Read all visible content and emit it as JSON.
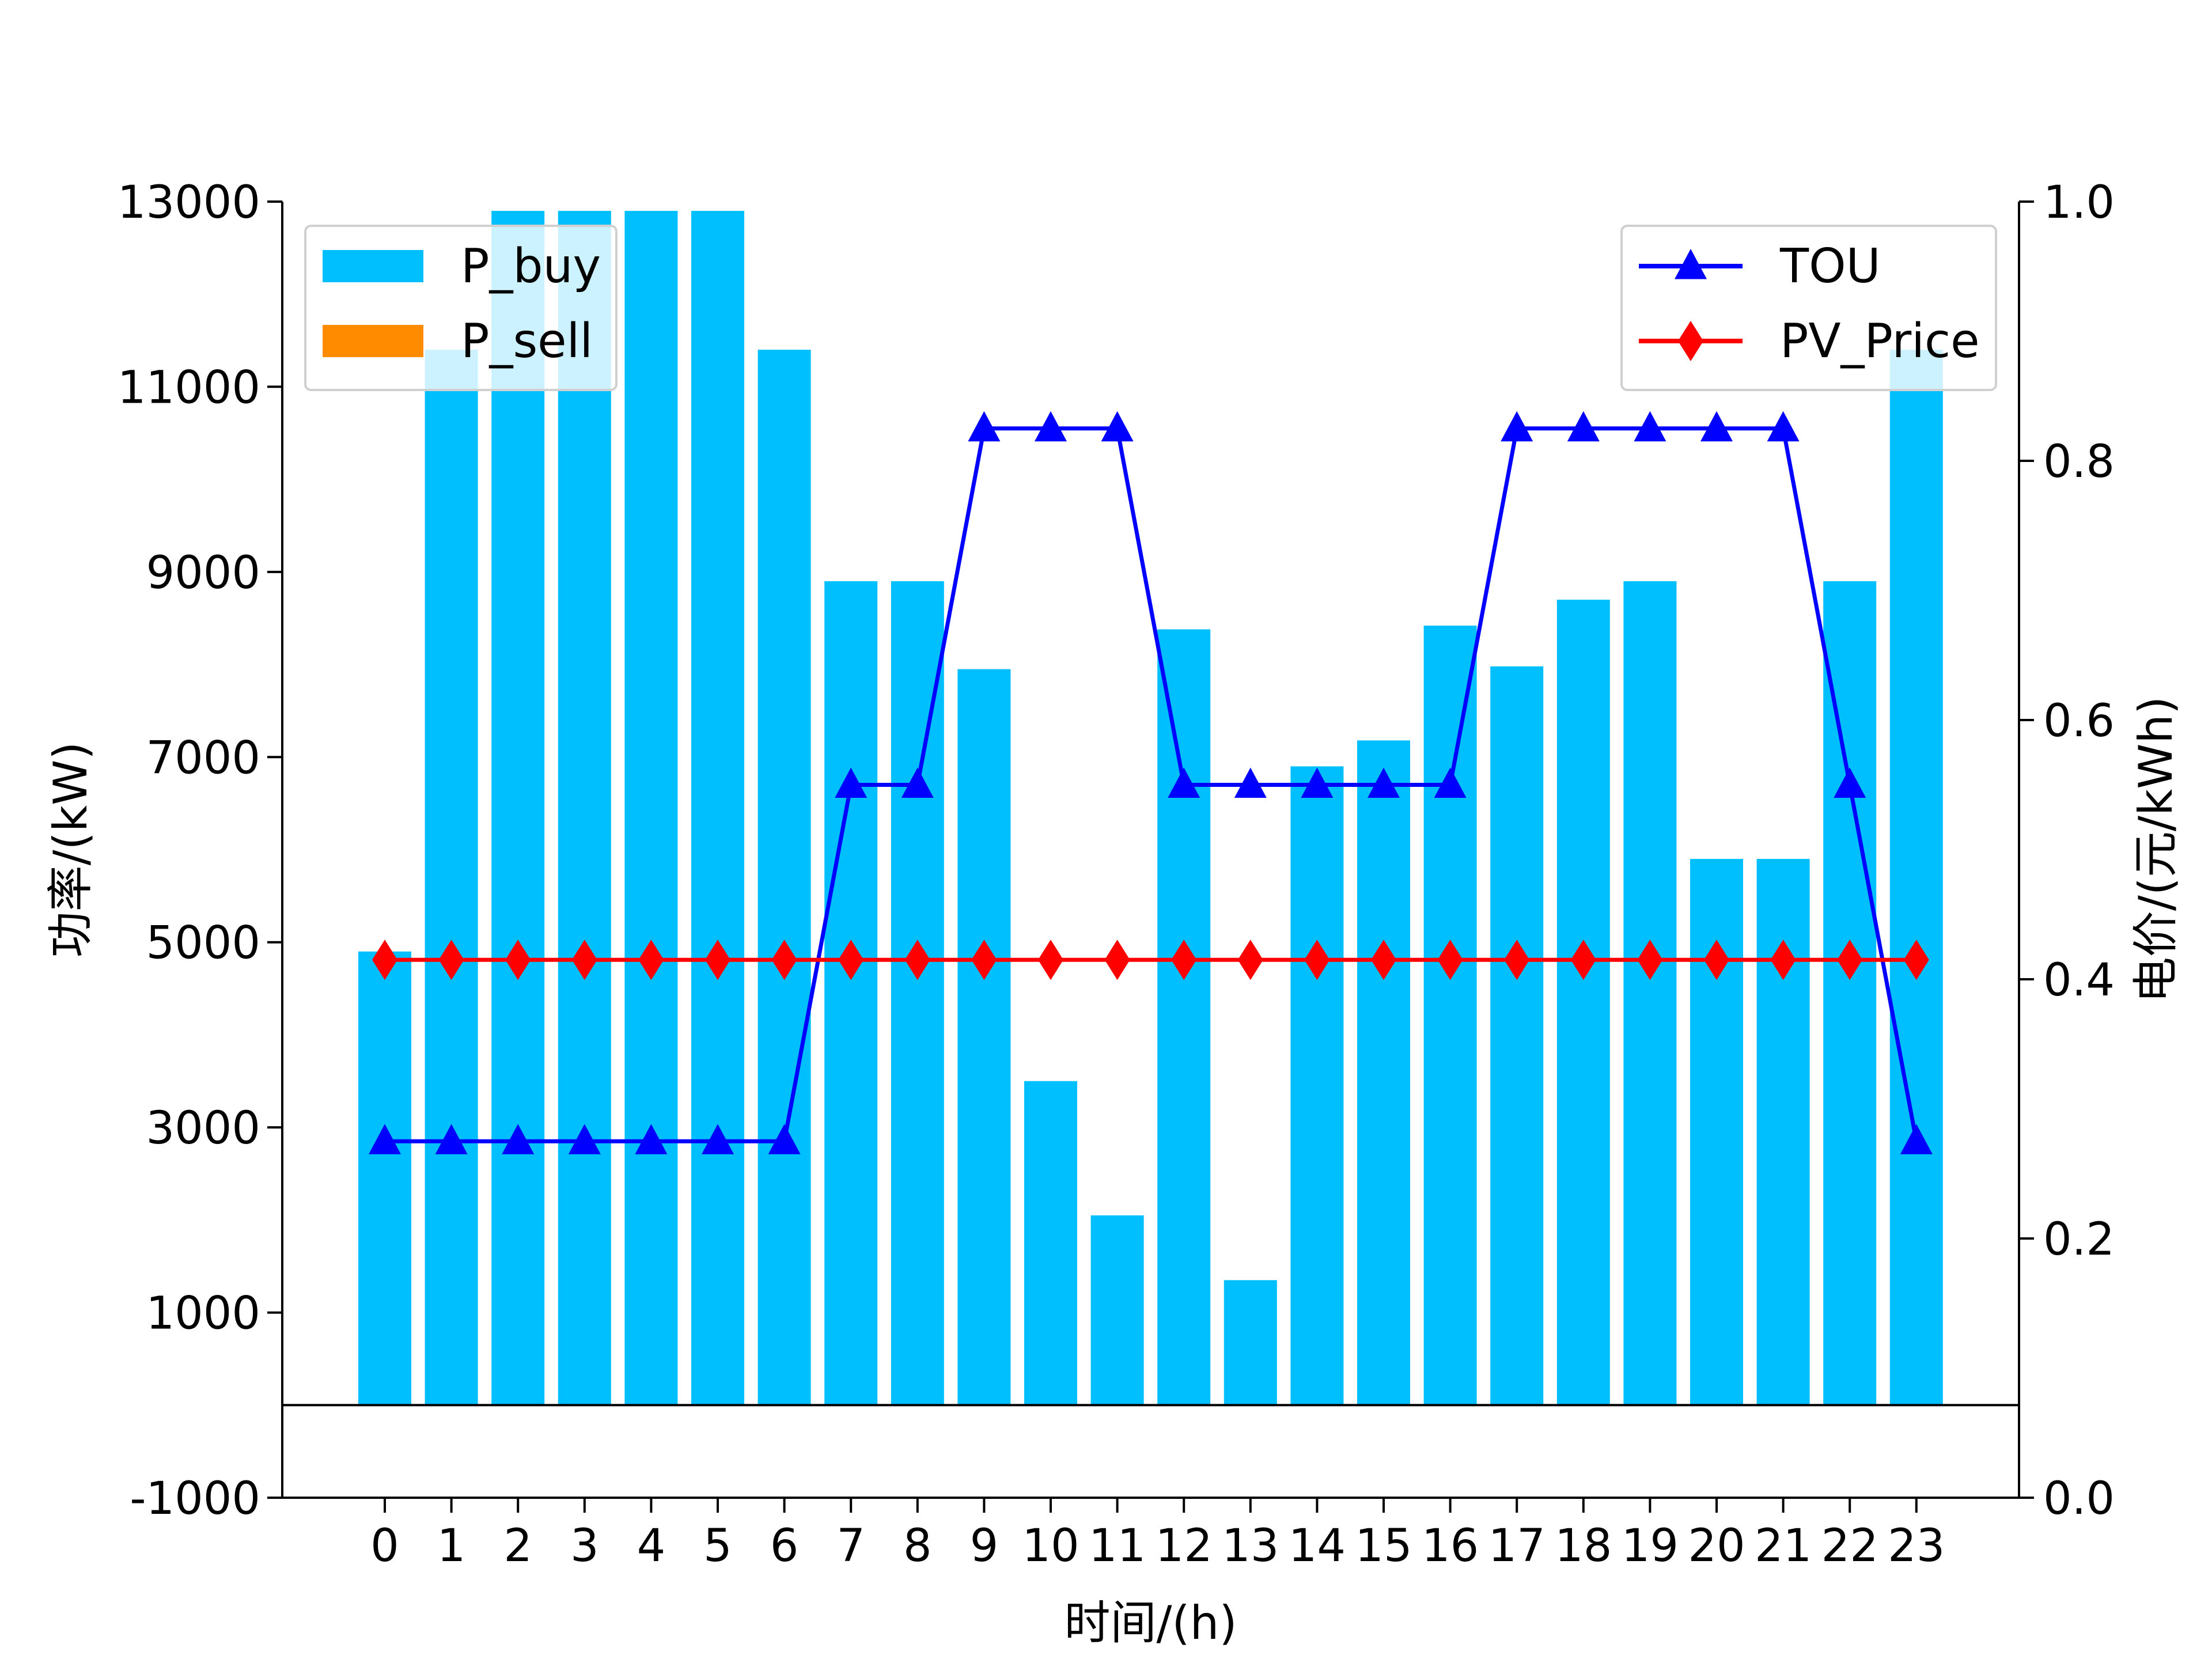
{
  "chart_data": {
    "type": "bar",
    "title": "",
    "xlabel": "时间/(h)",
    "ylabel_left": "功率/(kW)",
    "ylabel_right": "电价/(元/kWh)",
    "categories": [
      "0",
      "1",
      "2",
      "3",
      "4",
      "5",
      "6",
      "7",
      "8",
      "9",
      "10",
      "11",
      "12",
      "13",
      "14",
      "15",
      "16",
      "17",
      "18",
      "19",
      "20",
      "21",
      "22",
      "23"
    ],
    "ylim_left": [
      -1000,
      13000
    ],
    "yticks_left": [
      -1000,
      1000,
      3000,
      5000,
      7000,
      9000,
      11000,
      13000
    ],
    "ylim_right": [
      0.0,
      1.0
    ],
    "yticks_right": [
      "0.0",
      "0.2",
      "0.4",
      "0.6",
      "0.8",
      "1.0"
    ],
    "bar_series": [
      {
        "name": "P_buy",
        "color": "#00BFFF",
        "values": [
          4900,
          11400,
          12900,
          12900,
          12900,
          12900,
          11400,
          8900,
          8900,
          7950,
          3500,
          2050,
          8380,
          1350,
          6900,
          7180,
          8420,
          7980,
          8700,
          8900,
          5900,
          5900,
          8900,
          11400
        ]
      },
      {
        "name": "P_sell",
        "color": "#FF8C00",
        "values": [
          0,
          0,
          0,
          0,
          0,
          0,
          0,
          0,
          0,
          0,
          0,
          0,
          0,
          0,
          0,
          0,
          0,
          0,
          0,
          0,
          0,
          0,
          0,
          0
        ]
      }
    ],
    "line_series": [
      {
        "name": "TOU",
        "color": "#0000FF",
        "marker": "triangle",
        "values": [
          0.275,
          0.275,
          0.275,
          0.275,
          0.275,
          0.275,
          0.275,
          0.55,
          0.55,
          0.825,
          0.825,
          0.825,
          0.55,
          0.55,
          0.55,
          0.55,
          0.55,
          0.825,
          0.825,
          0.825,
          0.825,
          0.825,
          0.55,
          0.275
        ]
      },
      {
        "name": "PV_Price",
        "color": "#FF0000",
        "marker": "diamond",
        "values": [
          0.415,
          0.415,
          0.415,
          0.415,
          0.415,
          0.415,
          0.415,
          0.415,
          0.415,
          0.415,
          0.415,
          0.415,
          0.415,
          0.415,
          0.415,
          0.415,
          0.415,
          0.415,
          0.415,
          0.415,
          0.415,
          0.415,
          0.415,
          0.415
        ]
      }
    ],
    "zero_line": 0,
    "legend_left_placement": "upper-left",
    "legend_right_placement": "upper-right",
    "grid": false
  }
}
